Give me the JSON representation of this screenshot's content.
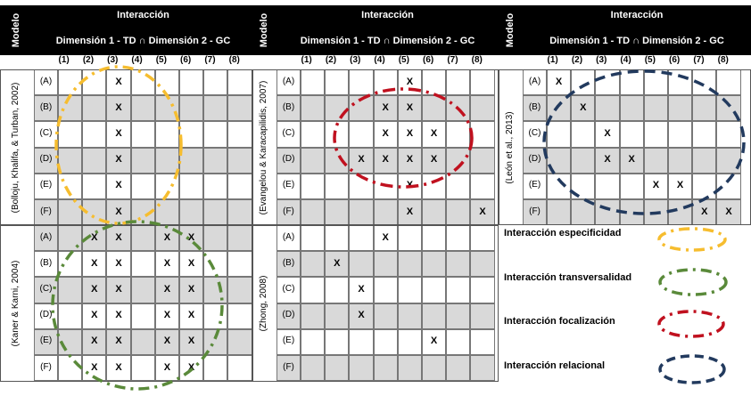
{
  "headers": {
    "interaction": "Interacción",
    "dimensions": "Dimensión 1 - TD ∩ Dimensión 2 - GC",
    "model": "Modelo",
    "columns": [
      "(1)",
      "(2)",
      "(3)",
      "(4)",
      "(5)",
      "(6)",
      "(7)",
      "(8)"
    ]
  },
  "row_labels": [
    "(A)",
    "(B)",
    "(C)",
    "(D)",
    "(E)",
    "(F)"
  ],
  "x_mark": "X",
  "models": [
    {
      "name": "(Bolloju, Khalifa, & Turban, 2002)",
      "marks": [
        [
          3
        ],
        [
          3
        ],
        [
          3
        ],
        [
          3
        ],
        [
          3
        ],
        [
          3
        ]
      ]
    },
    {
      "name": "(Evangelou & Karacapilidis, 2007)",
      "marks": [
        [
          5
        ],
        [
          4,
          5
        ],
        [
          4,
          5,
          6
        ],
        [
          3,
          4,
          5,
          6
        ],
        [
          5
        ],
        [
          5,
          8
        ]
      ]
    },
    {
      "name": "(León et al., 2013)",
      "marks": [
        [
          1
        ],
        [
          2
        ],
        [
          3
        ],
        [
          3,
          4
        ],
        [
          5,
          6
        ],
        [
          7,
          8
        ]
      ]
    },
    {
      "name": "(Kaner & Karni, 2004)",
      "marks": [
        [
          2,
          3,
          5,
          6
        ],
        [
          2,
          3,
          5,
          6
        ],
        [
          2,
          3,
          5,
          6
        ],
        [
          2,
          3,
          5,
          6
        ],
        [
          2,
          3,
          5,
          6
        ],
        [
          2,
          3,
          5,
          6
        ]
      ]
    },
    {
      "name": "(Zhong, 2008)",
      "marks": [
        [
          4
        ],
        [
          2
        ],
        [
          3
        ],
        [
          3
        ],
        [
          6
        ],
        []
      ]
    }
  ],
  "legend": [
    {
      "label": "Interacción especificidad",
      "color": "#f6bd2f"
    },
    {
      "label": "Interacción transversalidad",
      "color": "#5a8a3a"
    },
    {
      "label": "Interacción focalización",
      "color": "#c0111f"
    },
    {
      "label": "Interacción relacional",
      "color": "#223a5e"
    }
  ]
}
